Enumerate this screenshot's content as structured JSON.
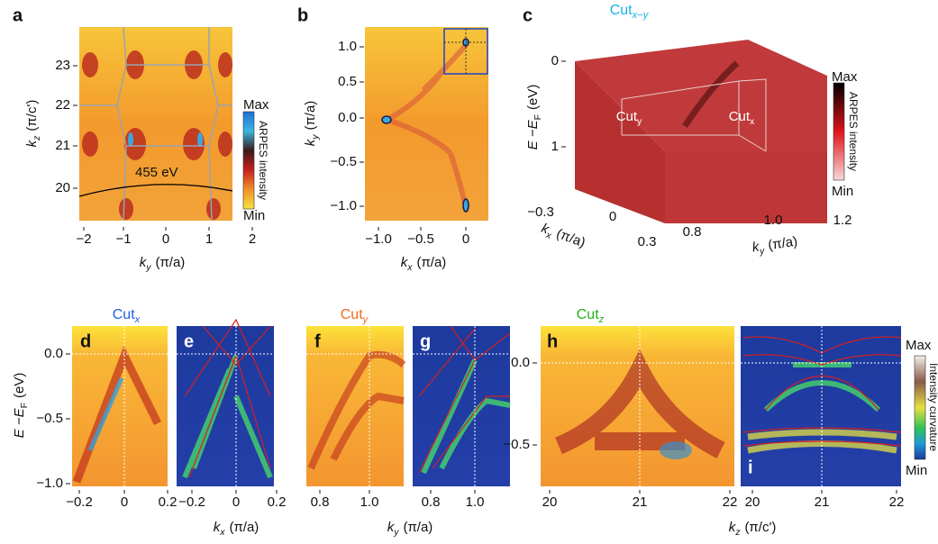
{
  "a": {
    "label": "a",
    "y_axis": {
      "text": "k",
      "sub": "z",
      "unit": "(π/c')"
    },
    "x_axis": {
      "text": "k",
      "sub": "y",
      "unit": "(π/a)"
    },
    "x_ticks": [
      "−2",
      "−1",
      "0",
      "1",
      "2"
    ],
    "y_ticks": [
      "23",
      "22",
      "21",
      "20"
    ],
    "annotation": "455 eV",
    "colorbar": {
      "max": "Max",
      "min": "Min",
      "title": "ARPES intensity"
    }
  },
  "b": {
    "label": "b",
    "y_axis": {
      "text": "k",
      "sub": "y",
      "unit": "(π/a)"
    },
    "x_axis": {
      "text": "k",
      "sub": "x",
      "unit": "(π/a)"
    },
    "x_ticks": [
      "−1.0",
      "−0.5",
      "0"
    ],
    "y_ticks": [
      "1.0",
      "0.5",
      "0.0",
      "−0.5",
      "−1.0"
    ]
  },
  "c": {
    "label": "c",
    "title": {
      "text": "Cut",
      "sub": "x−y"
    },
    "y_axis": {
      "text": "E −E",
      "sub": "F",
      "unit": "(eV)"
    },
    "y_ticks": [
      "0",
      "1"
    ],
    "cut_labels": [
      {
        "text": "Cut",
        "sub": "y"
      },
      {
        "text": "Cut",
        "sub": "x"
      }
    ],
    "kx_axis": {
      "text": "k",
      "sub": "x",
      "unit": "(π/a)"
    },
    "kx_ticks": [
      "−0.3",
      "0",
      "0.3"
    ],
    "ky_axis": {
      "text": "k",
      "sub": "y",
      "unit": "(π/a)"
    },
    "ky_ticks": [
      "0.8",
      "1.0",
      "1.2"
    ],
    "colorbar": {
      "max": "Max",
      "min": "Min",
      "title": "ARPES intensity"
    }
  },
  "d": {
    "label": "d",
    "title": {
      "text": "Cut",
      "sub": "x"
    },
    "y_axis": {
      "text": "E −E",
      "sub": "F",
      "unit": "(eV)"
    },
    "y_ticks": [
      "0.0",
      "−0.5",
      "−1.0"
    ],
    "x_ticks": [
      "−0.2",
      "0",
      "0.2"
    ],
    "x_axis": {
      "text": "k",
      "sub": "x",
      "unit": "(π/a)"
    }
  },
  "e": {
    "label": "e",
    "x_ticks": [
      "−0.2",
      "0",
      "0.2"
    ]
  },
  "f": {
    "label": "f",
    "title": {
      "text": "Cut",
      "sub": "y"
    },
    "x_ticks": [
      "0.8",
      "1.0"
    ],
    "x_axis": {
      "text": "k",
      "sub": "y",
      "unit": "(π/a)"
    }
  },
  "g": {
    "label": "g",
    "x_ticks": [
      "0.8",
      "1.0"
    ]
  },
  "h": {
    "label": "h",
    "title": {
      "text": "Cut",
      "sub": "z"
    },
    "y_ticks": [
      "0.0",
      "−0.5"
    ],
    "x_ticks": [
      "20",
      "21",
      "22"
    ],
    "x_axis": {
      "text": "k",
      "sub": "z",
      "unit": "(π/c')"
    }
  },
  "i": {
    "label": "i",
    "x_ticks": [
      "20",
      "21",
      "22"
    ],
    "colorbar": {
      "max": "Max",
      "min": "Min",
      "title": "Intensity curvature"
    }
  }
}
